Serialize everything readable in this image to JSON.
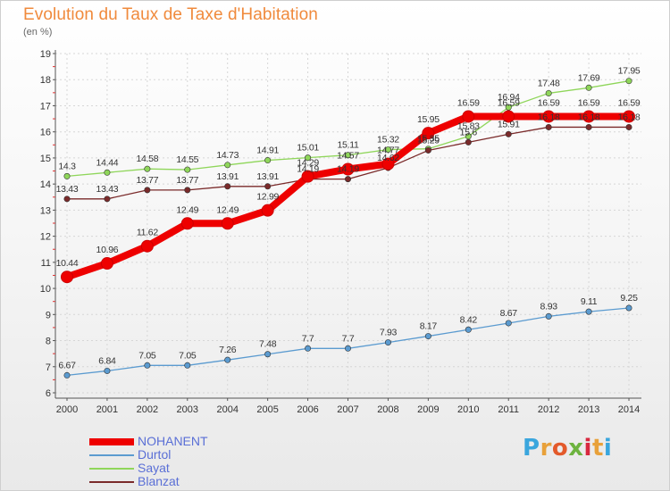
{
  "title": "Evolution du Taux de Taxe d'Habitation",
  "subtitle": "(en %)",
  "logo": {
    "text": "Proxiti",
    "colors": [
      "#3aa6dd",
      "#e8a13a",
      "#e35a2b",
      "#6db33f",
      "#d8283f",
      "#e8a13a",
      "#3aa6dd"
    ]
  },
  "chart_data": {
    "type": "line",
    "title": "Evolution du Taux de Taxe d'Habitation",
    "ylabel": "(en %)",
    "xlabel": "",
    "x": [
      "2000",
      "2001",
      "2002",
      "2003",
      "2004",
      "2005",
      "2006",
      "2007",
      "2008",
      "2009",
      "2010",
      "2011",
      "2012",
      "2013",
      "2014"
    ],
    "ylim": [
      6,
      19
    ],
    "yticks": [
      6,
      7,
      8,
      9,
      10,
      11,
      12,
      13,
      14,
      15,
      16,
      17,
      18,
      19
    ],
    "grid": true,
    "legend_position": "bottom-left",
    "series": [
      {
        "name": "NOHANENT",
        "color": "#ee0000",
        "thick": true,
        "values": [
          10.44,
          10.96,
          11.62,
          12.49,
          12.49,
          12.99,
          14.29,
          14.57,
          14.77,
          15.95,
          16.59,
          16.59,
          16.59,
          16.59,
          16.59
        ],
        "labels": [
          "10.44",
          "10.96",
          "11.62",
          "12.49",
          "12.49",
          "12.99",
          "14.29",
          "14.57",
          "14.77",
          "15.95",
          "16.59",
          "16.59",
          "16.59",
          "16.59",
          "16.59"
        ]
      },
      {
        "name": "Durtol",
        "color": "#5b9bd0",
        "thick": false,
        "values": [
          6.67,
          6.84,
          7.05,
          7.05,
          7.26,
          7.48,
          7.7,
          7.7,
          7.93,
          8.17,
          8.42,
          8.67,
          8.93,
          9.11,
          9.25
        ],
        "labels": [
          "6.67",
          "6.84",
          "7.05",
          "7.05",
          "7.26",
          "7.48",
          "7.7",
          "7.7",
          "7.93",
          "8.17",
          "8.42",
          "8.67",
          "8.93",
          "9.11",
          "9.25"
        ]
      },
      {
        "name": "Sayat",
        "color": "#8fd65a",
        "thick": false,
        "values": [
          14.3,
          14.44,
          14.58,
          14.55,
          14.73,
          14.91,
          15.01,
          15.11,
          15.32,
          15.35,
          15.83,
          16.94,
          17.48,
          17.69,
          17.95
        ],
        "labels": [
          "14.3",
          "14.44",
          "14.58",
          "14.55",
          "14.73",
          "14.91",
          "15.01",
          "15.11",
          "15.32",
          "15.35",
          "15.83",
          "16.94",
          "17.48",
          "17.69",
          "17.95"
        ]
      },
      {
        "name": "Blanzat",
        "color": "#7a2a2a",
        "thick": false,
        "values": [
          13.43,
          13.43,
          13.77,
          13.77,
          13.91,
          13.91,
          14.19,
          14.19,
          14.62,
          15.29,
          15.6,
          15.91,
          16.18,
          16.18,
          16.18
        ],
        "labels": [
          "13.43",
          "13.43",
          "13.77",
          "13.77",
          "13.91",
          "13.91",
          "14.19",
          "14.19",
          "14.62",
          "15.29",
          "15.6",
          "15.91",
          "16.18",
          "16.18",
          "16.18"
        ]
      }
    ]
  }
}
